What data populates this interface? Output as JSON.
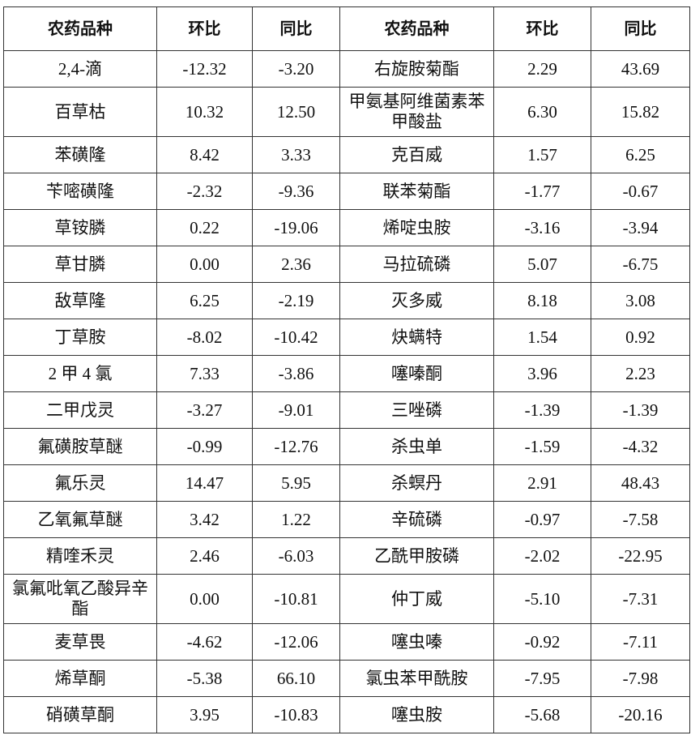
{
  "headers": [
    "农药品种",
    "环比",
    "同比",
    "农药品种",
    "环比",
    "同比"
  ],
  "rows": [
    [
      "2,4-滴",
      "-12.32",
      "-3.20",
      "右旋胺菊酯",
      "2.29",
      "43.69"
    ],
    [
      "百草枯",
      "10.32",
      "12.50",
      "甲氨基阿维菌素苯甲酸盐",
      "6.30",
      "15.82"
    ],
    [
      "苯磺隆",
      "8.42",
      "3.33",
      "克百威",
      "1.57",
      "6.25"
    ],
    [
      "苄嘧磺隆",
      "-2.32",
      "-9.36",
      "联苯菊酯",
      "-1.77",
      "-0.67"
    ],
    [
      "草铵膦",
      "0.22",
      "-19.06",
      "烯啶虫胺",
      "-3.16",
      "-3.94"
    ],
    [
      "草甘膦",
      "0.00",
      "2.36",
      "马拉硫磷",
      "5.07",
      "-6.75"
    ],
    [
      "敌草隆",
      "6.25",
      "-2.19",
      "灭多威",
      "8.18",
      "3.08"
    ],
    [
      "丁草胺",
      "-8.02",
      "-10.42",
      "炔螨特",
      "1.54",
      "0.92"
    ],
    [
      "2 甲 4 氯",
      "7.33",
      "-3.86",
      "噻嗪酮",
      "3.96",
      "2.23"
    ],
    [
      "二甲戊灵",
      "-3.27",
      "-9.01",
      "三唑磷",
      "-1.39",
      "-1.39"
    ],
    [
      "氟磺胺草醚",
      "-0.99",
      "-12.76",
      "杀虫单",
      "-1.59",
      "-4.32"
    ],
    [
      "氟乐灵",
      "14.47",
      "5.95",
      "杀螟丹",
      "2.91",
      "48.43"
    ],
    [
      "乙氧氟草醚",
      "3.42",
      "1.22",
      "辛硫磷",
      "-0.97",
      "-7.58"
    ],
    [
      "精喹禾灵",
      "2.46",
      "-6.03",
      "乙酰甲胺磷",
      "-2.02",
      "-22.95"
    ],
    [
      "氯氟吡氧乙酸异辛酯",
      "0.00",
      "-10.81",
      "仲丁威",
      "-5.10",
      "-7.31"
    ],
    [
      "麦草畏",
      "-4.62",
      "-12.06",
      "噻虫嗪",
      "-0.92",
      "-7.11"
    ],
    [
      "烯草酮",
      "-5.38",
      "66.10",
      "氯虫苯甲酰胺",
      "-7.95",
      "-7.98"
    ],
    [
      "硝磺草酮",
      "3.95",
      "-10.83",
      "噻虫胺",
      "-5.68",
      "-20.16"
    ]
  ]
}
